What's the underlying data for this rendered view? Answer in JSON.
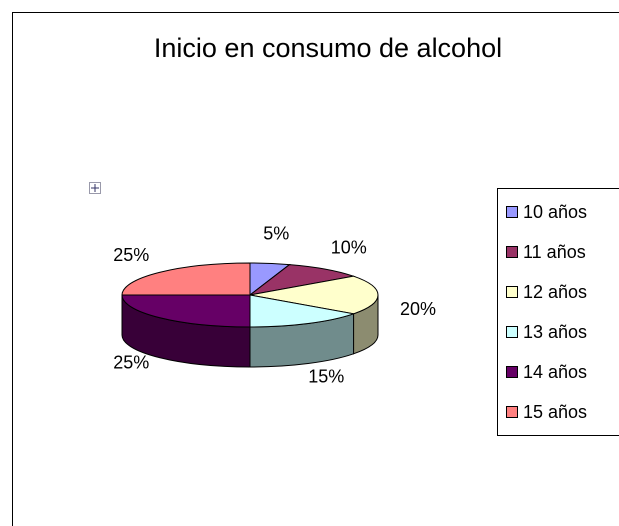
{
  "chart_data": {
    "type": "pie",
    "title": "Inicio en consumo de alcohol",
    "categories": [
      "10 años",
      "11 años",
      "12 años",
      "13 años",
      "14 años",
      "15 años"
    ],
    "values": [
      5,
      10,
      20,
      15,
      25,
      25
    ],
    "value_labels": [
      "5%",
      "10%",
      "20%",
      "15%",
      "25%",
      "25%"
    ],
    "colors": [
      "#9999ff",
      "#993366",
      "#ffffcc",
      "#ccffff",
      "#660066",
      "#ff8080"
    ],
    "legend": "right"
  }
}
